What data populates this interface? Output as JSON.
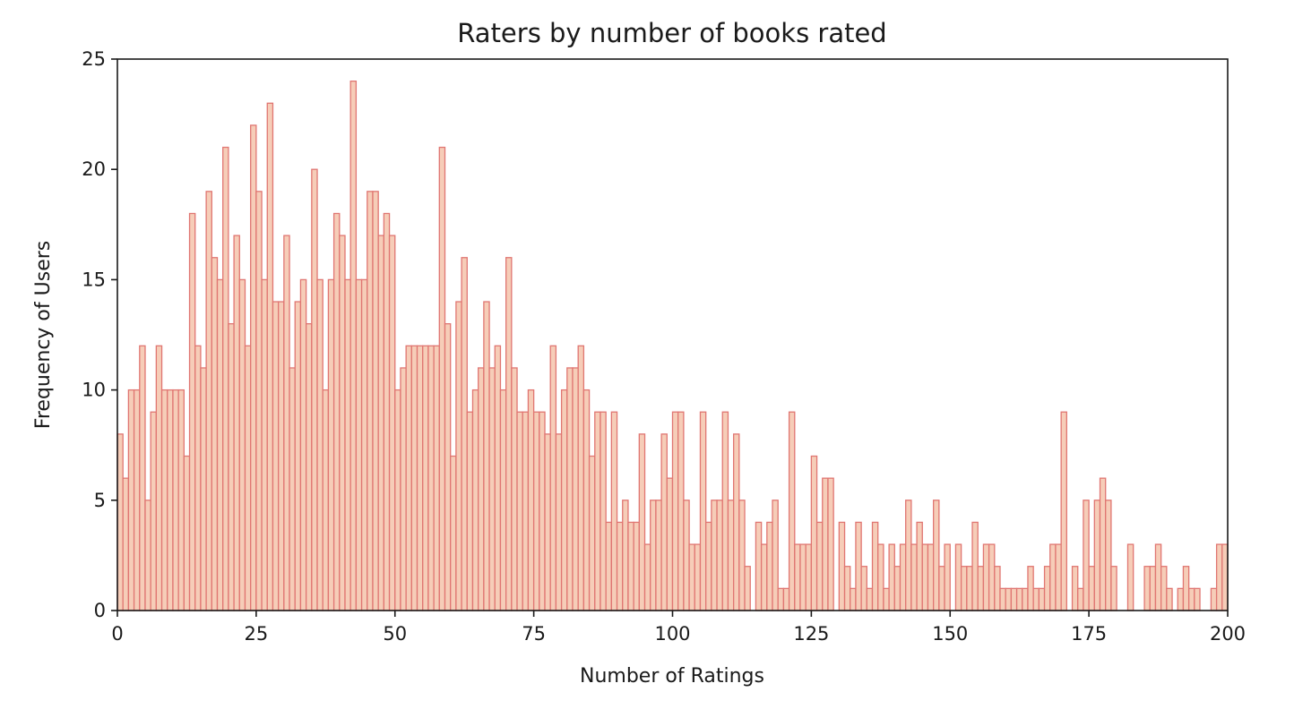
{
  "chart_data": {
    "type": "bar",
    "title": "Raters by number of books rated",
    "xlabel": "Number of Ratings",
    "ylabel": "Frequency of Users",
    "xlim": [
      0,
      200
    ],
    "ylim": [
      0,
      25
    ],
    "xticks": [
      "0",
      "25",
      "50",
      "75",
      "100",
      "125",
      "150",
      "175",
      "200"
    ],
    "yticks": [
      "0",
      "5",
      "10",
      "15",
      "20",
      "25"
    ],
    "grid": false,
    "bin_width": 1,
    "colors": {
      "fill": "#f6cdb8",
      "edge": "#e07672"
    },
    "x": [
      0,
      1,
      2,
      3,
      4,
      5,
      6,
      7,
      8,
      9,
      10,
      11,
      12,
      13,
      14,
      15,
      16,
      17,
      18,
      19,
      20,
      21,
      22,
      23,
      24,
      25,
      26,
      27,
      28,
      29,
      30,
      31,
      32,
      33,
      34,
      35,
      36,
      37,
      38,
      39,
      40,
      41,
      42,
      43,
      44,
      45,
      46,
      47,
      48,
      49,
      50,
      51,
      52,
      53,
      54,
      55,
      56,
      57,
      58,
      59,
      60,
      61,
      62,
      63,
      64,
      65,
      66,
      67,
      68,
      69,
      70,
      71,
      72,
      73,
      74,
      75,
      76,
      77,
      78,
      79,
      80,
      81,
      82,
      83,
      84,
      85,
      86,
      87,
      88,
      89,
      90,
      91,
      92,
      93,
      94,
      95,
      96,
      97,
      98,
      99,
      100,
      101,
      102,
      103,
      104,
      105,
      106,
      107,
      108,
      109,
      110,
      111,
      112,
      113,
      114,
      115,
      116,
      117,
      118,
      119,
      120,
      121,
      122,
      123,
      124,
      125,
      126,
      127,
      128,
      129,
      130,
      131,
      132,
      133,
      134,
      135,
      136,
      137,
      138,
      139,
      140,
      141,
      142,
      143,
      144,
      145,
      146,
      147,
      148,
      149,
      150,
      151,
      152,
      153,
      154,
      155,
      156,
      157,
      158,
      159,
      160,
      161,
      162,
      163,
      164,
      165,
      166,
      167,
      168,
      169,
      170,
      171,
      172,
      173,
      174,
      175,
      176,
      177,
      178,
      179,
      180,
      181,
      182,
      183,
      184,
      185,
      186,
      187,
      188,
      189,
      190,
      191,
      192,
      193,
      194,
      195,
      196,
      197,
      198,
      199
    ],
    "values": [
      8,
      6,
      10,
      10,
      12,
      5,
      9,
      12,
      10,
      10,
      10,
      10,
      7,
      18,
      12,
      11,
      19,
      16,
      15,
      21,
      13,
      17,
      15,
      12,
      22,
      19,
      15,
      23,
      14,
      14,
      17,
      11,
      14,
      15,
      13,
      20,
      15,
      10,
      15,
      18,
      17,
      15,
      24,
      15,
      15,
      19,
      19,
      17,
      18,
      17,
      10,
      11,
      12,
      12,
      12,
      12,
      12,
      12,
      21,
      13,
      7,
      14,
      16,
      9,
      10,
      11,
      14,
      11,
      12,
      10,
      16,
      11,
      9,
      9,
      10,
      9,
      9,
      8,
      12,
      8,
      10,
      11,
      11,
      12,
      10,
      7,
      9,
      9,
      4,
      9,
      4,
      5,
      4,
      4,
      8,
      3,
      5,
      5,
      8,
      6,
      9,
      9,
      5,
      3,
      3,
      9,
      4,
      5,
      5,
      9,
      5,
      8,
      5,
      2,
      0,
      4,
      3,
      4,
      5,
      1,
      1,
      9,
      3,
      3,
      3,
      7,
      4,
      6,
      6,
      0,
      4,
      2,
      1,
      4,
      2,
      1,
      4,
      3,
      1,
      3,
      2,
      3,
      5,
      3,
      4,
      3,
      3,
      5,
      2,
      3,
      0,
      3,
      2,
      2,
      4,
      2,
      3,
      3,
      2,
      1,
      1,
      1,
      1,
      1,
      2,
      1,
      1,
      2,
      3,
      3,
      9,
      0,
      2,
      1,
      5,
      2,
      5,
      6,
      5,
      2,
      0,
      0,
      3,
      0,
      0,
      2,
      2,
      3,
      2,
      1,
      0,
      1,
      2,
      1,
      1,
      0,
      0,
      1,
      3,
      3
    ]
  }
}
